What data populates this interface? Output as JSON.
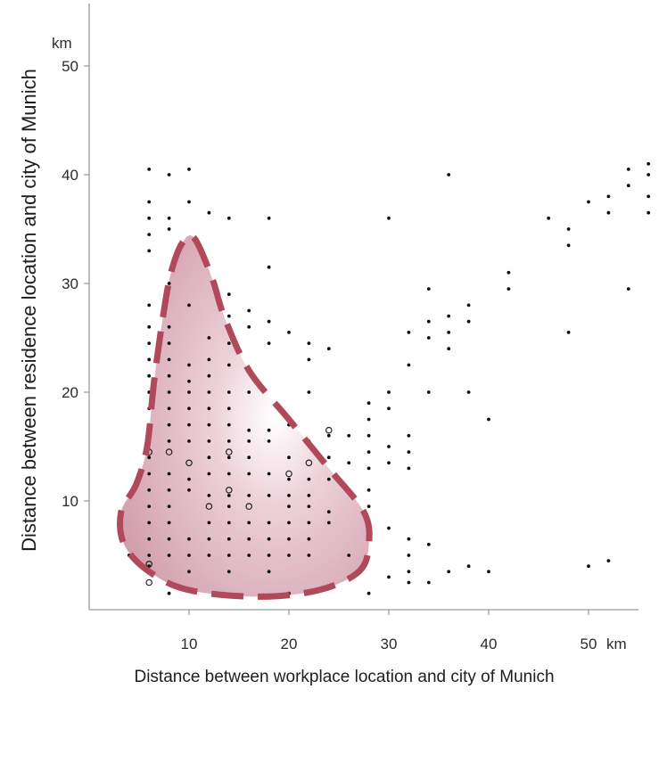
{
  "chart_data": {
    "type": "scatter",
    "title": "",
    "xlabel": "Distance between workplace location and city of Munich",
    "ylabel": "Distance between residence location and city of Munich",
    "x_unit": "km",
    "y_unit": "km",
    "xlim": [
      0,
      55
    ],
    "ylim": [
      0,
      56
    ],
    "xticks": [
      10,
      20,
      30,
      40,
      50
    ],
    "yticks": [
      10,
      20,
      30,
      40,
      50
    ],
    "grid": false,
    "highlight_region": {
      "shape": "dashed-outline-with-shaded-fill",
      "outline_color": "#b04a5a",
      "fill_color": "#d7a9b6",
      "outline": [
        [
          10.5,
          34.2
        ],
        [
          12.3,
          30.5
        ],
        [
          13.5,
          27
        ],
        [
          16,
          22
        ],
        [
          20,
          17.5
        ],
        [
          24,
          13
        ],
        [
          27.5,
          9
        ],
        [
          28,
          6
        ],
        [
          27,
          3.5
        ],
        [
          23,
          1.8
        ],
        [
          17,
          1.2
        ],
        [
          10,
          1.8
        ],
        [
          6,
          3.5
        ],
        [
          3.5,
          6
        ],
        [
          3.2,
          9
        ],
        [
          4.7,
          11.5
        ],
        [
          5.8,
          15
        ],
        [
          6.5,
          21
        ],
        [
          7.4,
          27
        ],
        [
          8.2,
          31
        ],
        [
          9.3,
          33.7
        ]
      ]
    },
    "point_color": "#111111",
    "points": [
      [
        6,
        40.5
      ],
      [
        8,
        40
      ],
      [
        10,
        40.5
      ],
      [
        6,
        37.5
      ],
      [
        10,
        37.5
      ],
      [
        6,
        36
      ],
      [
        8,
        36
      ],
      [
        12,
        36.5
      ],
      [
        14,
        36
      ],
      [
        18,
        36
      ],
      [
        6,
        34.5
      ],
      [
        8,
        35
      ],
      [
        6,
        33
      ],
      [
        18,
        31.5
      ],
      [
        8,
        30
      ],
      [
        14,
        29
      ],
      [
        6,
        28
      ],
      [
        10,
        28
      ],
      [
        14,
        27
      ],
      [
        16,
        27.5
      ],
      [
        6,
        26
      ],
      [
        8,
        26
      ],
      [
        16,
        26
      ],
      [
        18,
        26.5
      ],
      [
        20,
        25.5
      ],
      [
        6,
        24.5
      ],
      [
        8,
        24.5
      ],
      [
        12,
        25
      ],
      [
        14,
        24.5
      ],
      [
        18,
        24.5
      ],
      [
        22,
        24.5
      ],
      [
        24,
        24
      ],
      [
        6,
        23
      ],
      [
        8,
        23
      ],
      [
        10,
        22.5
      ],
      [
        12,
        23
      ],
      [
        14,
        22.5
      ],
      [
        22,
        23
      ],
      [
        6,
        21.5
      ],
      [
        8,
        21.5
      ],
      [
        10,
        21
      ],
      [
        12,
        21.5
      ],
      [
        6,
        20
      ],
      [
        8,
        20
      ],
      [
        10,
        20
      ],
      [
        12,
        20
      ],
      [
        14,
        20
      ],
      [
        16,
        20
      ],
      [
        22,
        20
      ],
      [
        6,
        18.5
      ],
      [
        8,
        18.5
      ],
      [
        10,
        18.5
      ],
      [
        12,
        18.5
      ],
      [
        14,
        18.5
      ],
      [
        6,
        17
      ],
      [
        8,
        17
      ],
      [
        10,
        17
      ],
      [
        12,
        17
      ],
      [
        14,
        17
      ],
      [
        16,
        16.5
      ],
      [
        18,
        16.5
      ],
      [
        20,
        17
      ],
      [
        6,
        15.5
      ],
      [
        8,
        15.5
      ],
      [
        10,
        15.5
      ],
      [
        12,
        15.5
      ],
      [
        14,
        15.5
      ],
      [
        16,
        15.5
      ],
      [
        18,
        15.5
      ],
      [
        22,
        15.5
      ],
      [
        6,
        14
      ],
      [
        12,
        14
      ],
      [
        14,
        14
      ],
      [
        16,
        14
      ],
      [
        20,
        14
      ],
      [
        24,
        14
      ],
      [
        6,
        12.5
      ],
      [
        8,
        12.5
      ],
      [
        10,
        12
      ],
      [
        12,
        12.5
      ],
      [
        14,
        12.5
      ],
      [
        16,
        12.5
      ],
      [
        18,
        12.5
      ],
      [
        20,
        12
      ],
      [
        22,
        12
      ],
      [
        24,
        12
      ],
      [
        6,
        11
      ],
      [
        8,
        11
      ],
      [
        10,
        11
      ],
      [
        12,
        10.5
      ],
      [
        14,
        10.5
      ],
      [
        16,
        10.5
      ],
      [
        18,
        10.5
      ],
      [
        20,
        10.5
      ],
      [
        22,
        10.5
      ],
      [
        6,
        9.5
      ],
      [
        8,
        9.5
      ],
      [
        14,
        9.5
      ],
      [
        20,
        9.5
      ],
      [
        22,
        9.5
      ],
      [
        24,
        9
      ],
      [
        6,
        8
      ],
      [
        8,
        8
      ],
      [
        12,
        8
      ],
      [
        14,
        8
      ],
      [
        16,
        8
      ],
      [
        18,
        8
      ],
      [
        20,
        8
      ],
      [
        22,
        8
      ],
      [
        24,
        8
      ],
      [
        6,
        6.5
      ],
      [
        8,
        6.5
      ],
      [
        10,
        6.5
      ],
      [
        12,
        6.5
      ],
      [
        14,
        6.5
      ],
      [
        16,
        6.5
      ],
      [
        18,
        6.5
      ],
      [
        20,
        6.5
      ],
      [
        22,
        6.5
      ],
      [
        4,
        5
      ],
      [
        6,
        5
      ],
      [
        8,
        5
      ],
      [
        10,
        5
      ],
      [
        12,
        5
      ],
      [
        14,
        5
      ],
      [
        16,
        5
      ],
      [
        18,
        5
      ],
      [
        20,
        5
      ],
      [
        22,
        5
      ],
      [
        26,
        5
      ],
      [
        6,
        4
      ],
      [
        10,
        3.5
      ],
      [
        14,
        3.5
      ],
      [
        18,
        3.5
      ],
      [
        8,
        1.5
      ],
      [
        20,
        1.5
      ],
      [
        24,
        2
      ],
      [
        28,
        1.5
      ],
      [
        24,
        16
      ],
      [
        26,
        16
      ],
      [
        28,
        19
      ],
      [
        28,
        17.5
      ],
      [
        28,
        16
      ],
      [
        28,
        14.5
      ],
      [
        28,
        13
      ],
      [
        28,
        11
      ],
      [
        28,
        9.5
      ],
      [
        26,
        13.5
      ],
      [
        30,
        20
      ],
      [
        30,
        18.5
      ],
      [
        30,
        15
      ],
      [
        30,
        13.5
      ],
      [
        30,
        7.5
      ],
      [
        30,
        3
      ],
      [
        32,
        16
      ],
      [
        32,
        14.5
      ],
      [
        32,
        13
      ],
      [
        32,
        6.5
      ],
      [
        32,
        5
      ],
      [
        32,
        3.5
      ],
      [
        32,
        2.5
      ],
      [
        32,
        22.5
      ],
      [
        32,
        25.5
      ],
      [
        34,
        29.5
      ],
      [
        34,
        26.5
      ],
      [
        34,
        25
      ],
      [
        34,
        20
      ],
      [
        34,
        6
      ],
      [
        34,
        2.5
      ],
      [
        36,
        27
      ],
      [
        36,
        25.5
      ],
      [
        36,
        24
      ],
      [
        36,
        3.5
      ],
      [
        36,
        40
      ],
      [
        38,
        28
      ],
      [
        38,
        26.5
      ],
      [
        38,
        20
      ],
      [
        38,
        4
      ],
      [
        40,
        17.5
      ],
      [
        40,
        3.5
      ],
      [
        42,
        31
      ],
      [
        42,
        29.5
      ],
      [
        46,
        36
      ],
      [
        48,
        35
      ],
      [
        48,
        33.5
      ],
      [
        48,
        25.5
      ],
      [
        30,
        36
      ],
      [
        50,
        37.5
      ],
      [
        50,
        4
      ],
      [
        52,
        38
      ],
      [
        52,
        36.5
      ],
      [
        52,
        4.5
      ],
      [
        54,
        40.5
      ],
      [
        54,
        39
      ],
      [
        54,
        29.5
      ],
      [
        56,
        41
      ],
      [
        56,
        40
      ],
      [
        56,
        38
      ],
      [
        56,
        36.5
      ]
    ],
    "rings": [
      [
        6,
        14.5
      ],
      [
        6,
        2.5
      ],
      [
        8,
        14.5
      ],
      [
        10,
        13.5
      ],
      [
        14,
        14.5
      ],
      [
        14,
        11
      ],
      [
        16,
        9.5
      ],
      [
        20,
        12.5
      ],
      [
        22,
        13.5
      ],
      [
        24,
        16.5
      ],
      [
        6,
        4.2
      ],
      [
        12,
        9.5
      ]
    ]
  }
}
